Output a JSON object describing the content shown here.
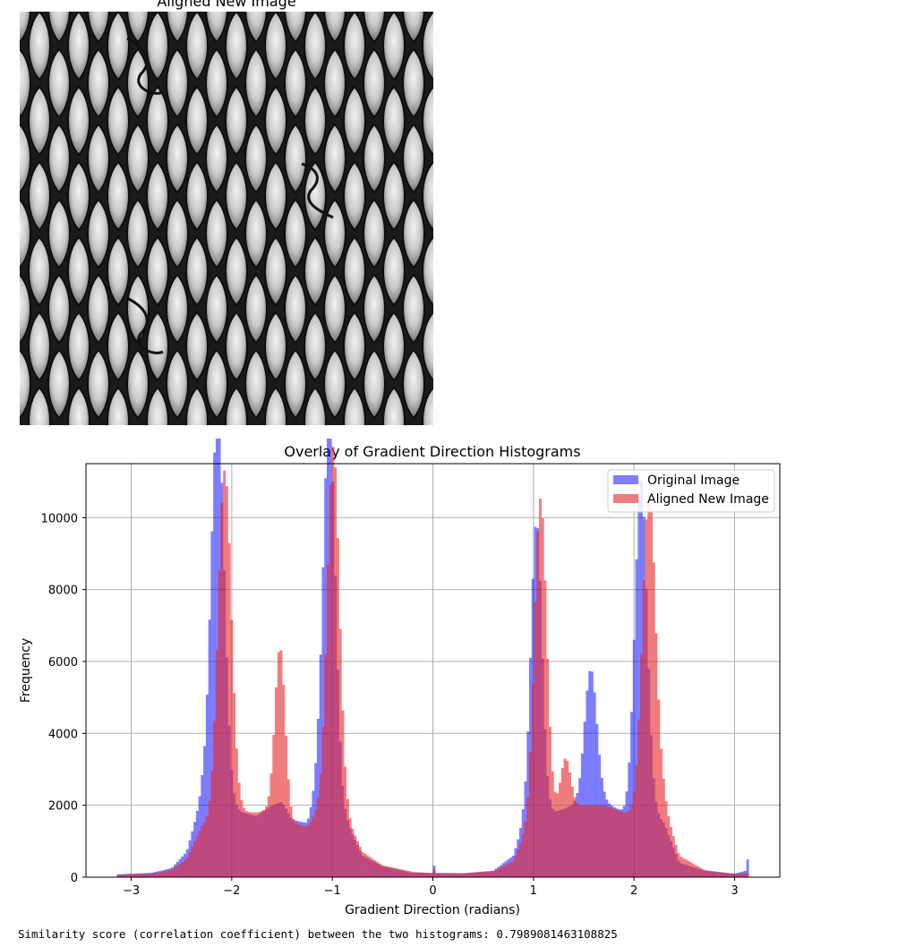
{
  "image_panel": {
    "title": "Aligned New Image",
    "content": "grayscale-mesh-texture"
  },
  "output_line": "Similarity score (correlation coefficient) between the two histograms: 0.7989081463108825",
  "chart_data": {
    "type": "bar",
    "title": "Overlay of Gradient Direction Histograms",
    "xlabel": "Gradient Direction (radians)",
    "ylabel": "Frequency",
    "xlim": [
      -3.45,
      3.45
    ],
    "ylim": [
      0,
      11500
    ],
    "xticks": [
      -3,
      -2,
      -1,
      0,
      1,
      2,
      3
    ],
    "xtick_labels": [
      "−3",
      "−2",
      "−1",
      "0",
      "1",
      "2",
      "3"
    ],
    "yticks": [
      0,
      2000,
      4000,
      6000,
      8000,
      10000
    ],
    "ytick_labels": [
      "0",
      "2000",
      "4000",
      "6000",
      "8000",
      "10000"
    ],
    "grid": true,
    "legend_position": "upper right",
    "bins": 256,
    "bin_range": [
      -3.14159,
      3.14159
    ],
    "series": [
      {
        "name": "Original Image",
        "color": "#0000ff",
        "alpha": 0.5,
        "baseline": [
          [
            -3.14,
            80
          ],
          [
            -2.8,
            120
          ],
          [
            -2.6,
            250
          ],
          [
            -2.45,
            700
          ],
          [
            -2.3,
            2200
          ],
          [
            -1.9,
            1800
          ],
          [
            -1.75,
            1700
          ],
          [
            -1.6,
            2000
          ],
          [
            -1.5,
            2100
          ],
          [
            -1.4,
            1600
          ],
          [
            -1.25,
            1500
          ],
          [
            -1.15,
            2500
          ],
          [
            -0.85,
            1500
          ],
          [
            -0.7,
            600
          ],
          [
            -0.5,
            300
          ],
          [
            -0.2,
            120
          ],
          [
            0.0,
            120
          ],
          [
            0.3,
            110
          ],
          [
            0.6,
            180
          ],
          [
            0.8,
            600
          ],
          [
            0.9,
            1500
          ],
          [
            1.3,
            1900
          ],
          [
            1.5,
            2100
          ],
          [
            1.7,
            2100
          ],
          [
            1.9,
            1800
          ],
          [
            2.05,
            2200
          ],
          [
            2.3,
            1500
          ],
          [
            2.45,
            400
          ],
          [
            2.7,
            180
          ],
          [
            3.0,
            100
          ],
          [
            3.14,
            200
          ]
        ],
        "peaks": [
          [
            -2.14,
            11000,
            0.065
          ],
          [
            -1.03,
            10800,
            0.06
          ],
          [
            1.03,
            8300,
            0.055
          ],
          [
            1.57,
            3700,
            0.06
          ],
          [
            2.07,
            8900,
            0.06
          ]
        ],
        "spikes": [
          [
            0.02,
            200
          ],
          [
            3.12,
            300
          ]
        ]
      },
      {
        "name": "Aligned New Image",
        "color": "#e8282a",
        "alpha": 0.6,
        "baseline": [
          [
            -3.14,
            60
          ],
          [
            -2.8,
            100
          ],
          [
            -2.6,
            200
          ],
          [
            -2.45,
            500
          ],
          [
            -2.3,
            1400
          ],
          [
            -1.9,
            1800
          ],
          [
            -1.75,
            1800
          ],
          [
            -1.6,
            1900
          ],
          [
            -1.5,
            1800
          ],
          [
            -1.4,
            1500
          ],
          [
            -1.25,
            1400
          ],
          [
            -1.15,
            1800
          ],
          [
            -0.85,
            1600
          ],
          [
            -0.7,
            700
          ],
          [
            -0.5,
            330
          ],
          [
            -0.2,
            150
          ],
          [
            0.0,
            110
          ],
          [
            0.3,
            110
          ],
          [
            0.6,
            160
          ],
          [
            0.8,
            450
          ],
          [
            0.9,
            1100
          ],
          [
            1.3,
            1900
          ],
          [
            1.5,
            2000
          ],
          [
            1.7,
            2000
          ],
          [
            1.9,
            1800
          ],
          [
            2.05,
            1700
          ],
          [
            2.3,
            2000
          ],
          [
            2.45,
            600
          ],
          [
            2.7,
            200
          ],
          [
            3.0,
            90
          ],
          [
            3.14,
            120
          ]
        ],
        "peaks": [
          [
            -2.07,
            9700,
            0.065
          ],
          [
            -1.52,
            4600,
            0.05
          ],
          [
            -0.99,
            10300,
            0.06
          ],
          [
            1.07,
            9100,
            0.06
          ],
          [
            1.32,
            1400,
            0.05
          ],
          [
            2.15,
            8900,
            0.065
          ]
        ],
        "spikes": [
          [
            0.02,
            120
          ]
        ]
      }
    ]
  }
}
